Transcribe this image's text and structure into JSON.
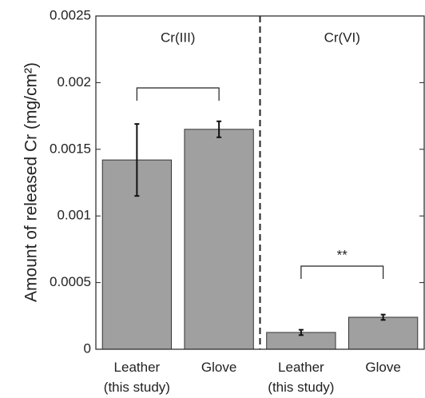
{
  "chart_data": {
    "type": "bar",
    "ylabel": "Amount of released Cr (mg/cm²)",
    "categories": [
      [
        "Leather",
        "(this study)"
      ],
      [
        "Glove"
      ],
      [
        "Leather",
        "(this study)"
      ],
      [
        "Glove"
      ]
    ],
    "values": [
      0.00142,
      0.00165,
      0.000126,
      0.00024
    ],
    "errors": [
      0.00027,
      6e-05,
      2e-05,
      2e-05
    ],
    "color": "#a0a0a0",
    "groups": [
      "Cr(III)",
      "Cr(VI)"
    ],
    "significance": "**",
    "ylim": [
      0,
      0.0025
    ],
    "yticks": [
      0,
      0.0005,
      0.001,
      0.0015,
      0.002,
      0.0025
    ]
  }
}
